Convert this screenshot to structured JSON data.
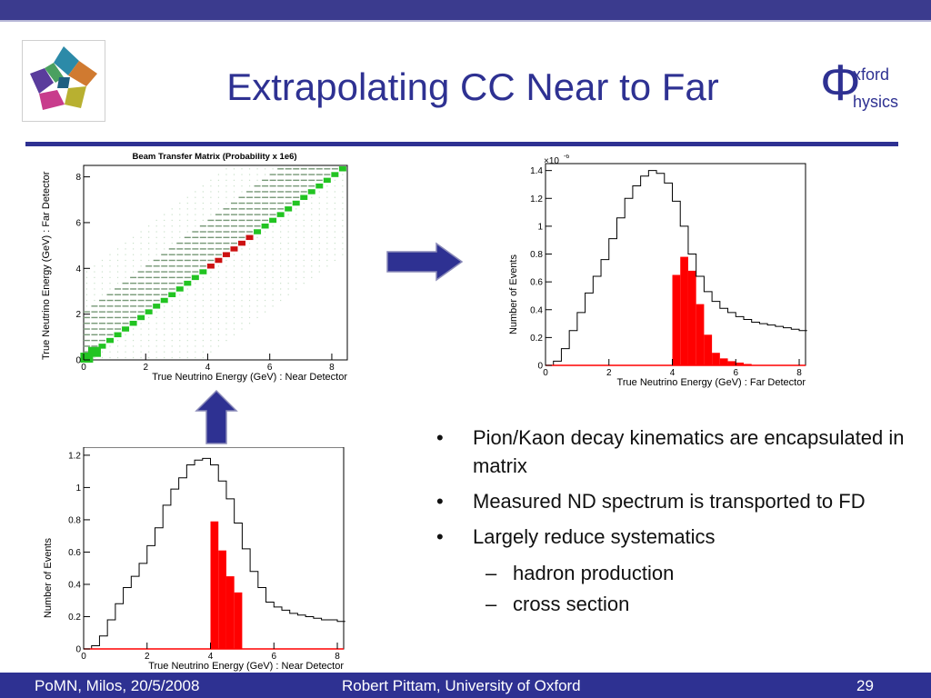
{
  "slide": {
    "title": "Extrapolating CC Near to Far",
    "logo_right": {
      "phi": "Φ",
      "line1": "xford",
      "line2": "hysics"
    },
    "bullets": [
      {
        "text": "Pion/Kaon decay kinematics are encapsulated in matrix",
        "level": 1
      },
      {
        "text": "Measured ND spectrum is transported to FD",
        "level": 1
      },
      {
        "text": "Largely reduce systematics",
        "level": 1
      },
      {
        "text": "hadron production",
        "level": 2
      },
      {
        "text": "cross section",
        "level": 2
      }
    ],
    "bullet_mark": "•",
    "sub_mark": "–",
    "footer": {
      "left": "PoMN, Milos, 20/5/2008",
      "center": "Robert Pittam, University of Oxford",
      "right": "29"
    },
    "colors": {
      "title": "#2e3192",
      "arrow": "#2e3192",
      "fill": "#ff0000",
      "matrix_green": "#22c422",
      "matrix_red": "#cc1111"
    }
  },
  "chart_data": [
    {
      "type": "heatmap",
      "title": "Beam Transfer Matrix (Probability x 1e6)",
      "xlabel": "True Neutrino Energy (GeV) : Near Detector",
      "ylabel": "True Neutrino Energy (GeV) : Far  Detector",
      "xlim": [
        0,
        8.5
      ],
      "ylim": [
        0,
        8.5
      ],
      "xticks": [
        "0",
        "2",
        "4",
        "6",
        "8"
      ],
      "yticks": [
        "0",
        "2",
        "4",
        "6",
        "8"
      ],
      "structure": "diagonal band"
    },
    {
      "type": "area",
      "title": "",
      "xlabel": "True Neutrino Energy (GeV) : Far Detector",
      "ylabel": "Number of Events",
      "multiplier": "×10",
      "exponent": "-6",
      "xlim": [
        0,
        8.2
      ],
      "ylim": [
        0,
        1.45
      ],
      "xticks": [
        "0",
        "2",
        "4",
        "6",
        "8"
      ],
      "yticks": [
        "0",
        "0.2",
        "0.4",
        "0.6",
        "0.8",
        "1",
        "1.2",
        "1.4"
      ],
      "bin_width": 0.25,
      "series": [
        {
          "name": "",
          "style": "outline",
          "values": [
            0.0,
            0.03,
            0.12,
            0.25,
            0.38,
            0.52,
            0.64,
            0.76,
            0.91,
            1.06,
            1.2,
            1.29,
            1.36,
            1.4,
            1.38,
            1.31,
            1.18,
            1.0,
            0.8,
            0.64,
            0.53,
            0.46,
            0.41,
            0.38,
            0.35,
            0.33,
            0.31,
            0.3,
            0.29,
            0.28,
            0.27,
            0.26,
            0.25
          ]
        },
        {
          "name": "",
          "style": "filled",
          "values": [
            0,
            0,
            0,
            0,
            0,
            0,
            0,
            0,
            0,
            0,
            0,
            0,
            0,
            0,
            0,
            0,
            0.65,
            0.78,
            0.68,
            0.44,
            0.22,
            0.09,
            0.05,
            0.03,
            0.02,
            0.01,
            0,
            0,
            0,
            0,
            0,
            0,
            0
          ]
        }
      ]
    },
    {
      "type": "area",
      "title": "",
      "xlabel": "True Neutrino Energy (GeV) : Near Detector",
      "ylabel": "Number of Events",
      "xlim": [
        0,
        8.2
      ],
      "ylim": [
        0,
        1.25
      ],
      "xticks": [
        "0",
        "2",
        "4",
        "6",
        "8"
      ],
      "yticks": [
        "0",
        "0.2",
        "0.4",
        "0.6",
        "0.8",
        "1",
        "1.2"
      ],
      "bin_width": 0.25,
      "series": [
        {
          "name": "",
          "style": "outline",
          "values": [
            0.0,
            0.02,
            0.08,
            0.18,
            0.28,
            0.38,
            0.45,
            0.53,
            0.64,
            0.75,
            0.89,
            0.99,
            1.06,
            1.14,
            1.17,
            1.18,
            1.14,
            1.04,
            0.93,
            0.78,
            0.62,
            0.48,
            0.38,
            0.29,
            0.26,
            0.24,
            0.22,
            0.21,
            0.2,
            0.19,
            0.18,
            0.18,
            0.17
          ]
        },
        {
          "name": "",
          "style": "filled",
          "values": [
            0,
            0,
            0,
            0,
            0,
            0,
            0,
            0,
            0,
            0,
            0,
            0,
            0,
            0,
            0,
            0,
            0.79,
            0.61,
            0.45,
            0.35,
            0,
            0,
            0,
            0,
            0,
            0,
            0,
            0,
            0,
            0,
            0,
            0,
            0
          ]
        }
      ]
    }
  ]
}
